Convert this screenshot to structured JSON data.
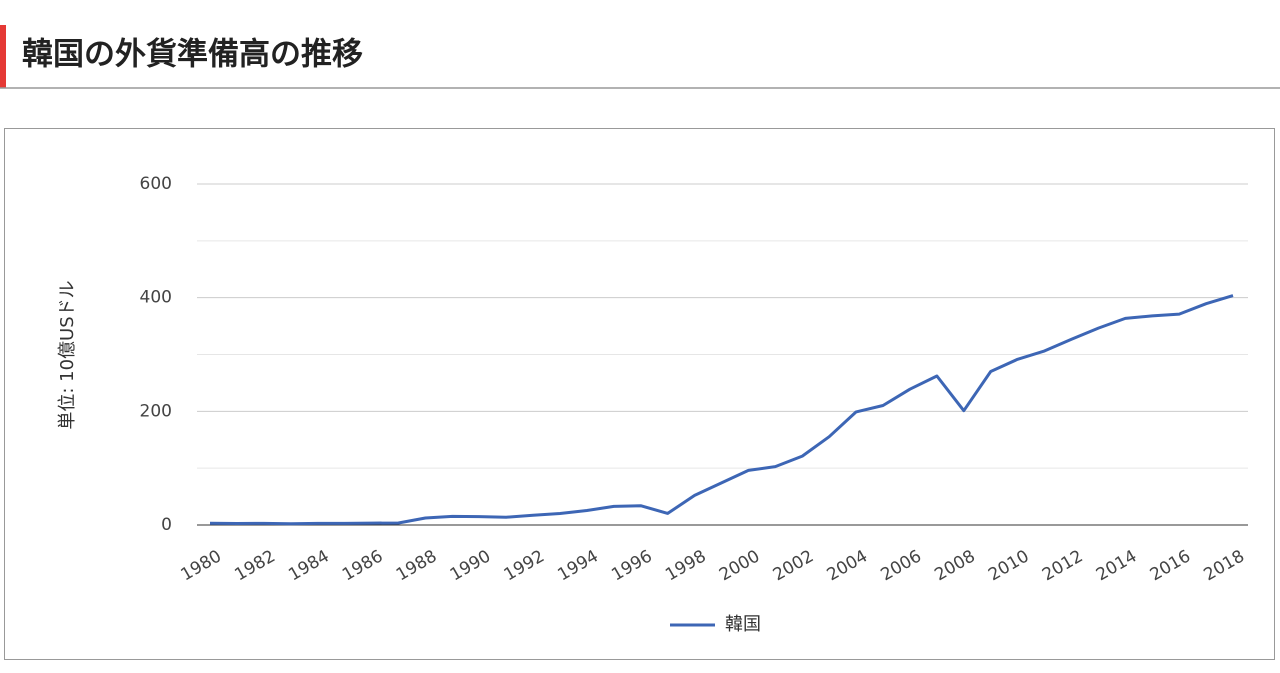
{
  "chart_data": {
    "type": "line",
    "title": "韓国の外貨準備高の推移",
    "y_label": "単位: 10億USドル",
    "x": [
      1980,
      1981,
      1982,
      1983,
      1984,
      1985,
      1986,
      1987,
      1988,
      1989,
      1990,
      1991,
      1992,
      1993,
      1994,
      1995,
      1996,
      1997,
      1998,
      1999,
      2000,
      2001,
      2002,
      2003,
      2004,
      2005,
      2006,
      2007,
      2008,
      2009,
      2010,
      2011,
      2012,
      2013,
      2014,
      2015,
      2016,
      2017,
      2018
    ],
    "series": [
      {
        "name": "韓国",
        "color": "#3d66b5",
        "values": [
          3,
          2.7,
          2.8,
          2.3,
          2.8,
          2.9,
          3.3,
          3.6,
          12.3,
          15.2,
          14.8,
          13.7,
          17.1,
          20.2,
          25.6,
          32.7,
          34,
          20.4,
          52,
          74,
          96.1,
          102.8,
          121.3,
          155.3,
          199,
          210.3,
          238.9,
          262.2,
          201.2,
          270,
          291.6,
          306.4,
          326.9,
          346.5,
          363.6,
          368,
          371.1,
          389.3,
          403.7
        ]
      }
    ],
    "xlim": [
      1980,
      2018
    ],
    "xticks": [
      1980,
      1982,
      1984,
      1986,
      1988,
      1990,
      1992,
      1994,
      1996,
      1998,
      2000,
      2002,
      2004,
      2006,
      2008,
      2010,
      2012,
      2014,
      2016,
      2018
    ],
    "ylim": [
      0,
      600
    ],
    "yticks": [
      0,
      200,
      400,
      600
    ],
    "minor_yticks": [
      100,
      300,
      500
    ],
    "grid": true,
    "legend": "bottom"
  }
}
